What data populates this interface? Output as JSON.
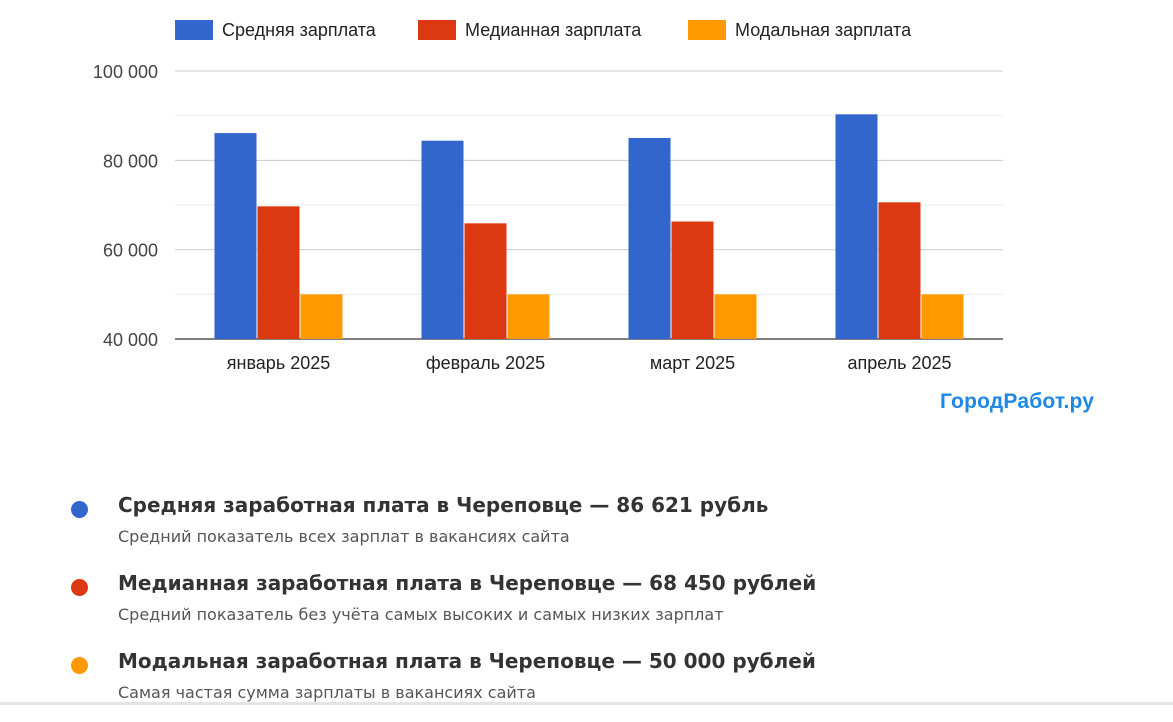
{
  "chart_data": {
    "type": "bar",
    "categories": [
      "январь 2025",
      "февраль 2025",
      "март 2025",
      "апрель 2025"
    ],
    "series": [
      {
        "name": "Средняя зарплата",
        "color": "#3366cc",
        "values": [
          86100,
          84400,
          85000,
          90300
        ]
      },
      {
        "name": "Медианная зарплата",
        "color": "#dc3912",
        "values": [
          69700,
          65900,
          66300,
          70600
        ]
      },
      {
        "name": "Модальная зарплата",
        "color": "#ff9900",
        "values": [
          50000,
          50000,
          50000,
          50000
        ]
      }
    ],
    "ylim": [
      40000,
      100000
    ],
    "yticks": [
      40000,
      60000,
      80000,
      100000
    ],
    "ytick_labels": [
      "40 000",
      "60 000",
      "80 000",
      "100 000"
    ],
    "grid": true,
    "legend": "top"
  },
  "brand": "ГородРабот.ру",
  "stats": [
    {
      "title": "Средняя заработная плата в Череповце — 86 621 рубль",
      "desc": "Средний показатель всех зарплат в вакансиях сайта",
      "color": "#3366cc"
    },
    {
      "title": "Медианная заработная плата в Череповце — 68 450 рублей",
      "desc": "Средний показатель без учёта самых высоких и самых низких зарплат",
      "color": "#dc3912"
    },
    {
      "title": "Модальная заработная плата в Череповце — 50 000 рублей",
      "desc": "Самая частая сумма зарплаты в вакансиях сайта",
      "color": "#ff9900"
    }
  ]
}
